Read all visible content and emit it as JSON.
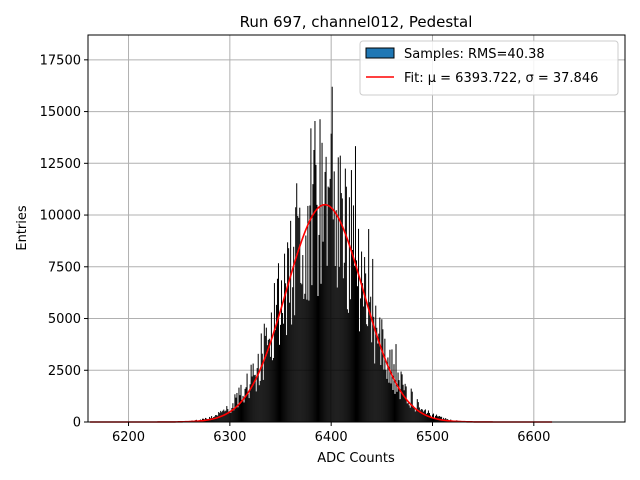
{
  "chart_data": {
    "type": "bar",
    "title": "Run 697, channel012, Pedestal",
    "xlabel": "ADC Counts",
    "ylabel": "Entries",
    "xlim": [
      6160,
      6690
    ],
    "ylim": [
      0,
      18700
    ],
    "xticks": [
      6200,
      6300,
      6400,
      6500,
      6600
    ],
    "yticks": [
      0,
      2500,
      5000,
      7500,
      10000,
      12500,
      15000,
      17500
    ],
    "grid": true,
    "legend_position": "top-right",
    "legend": [
      {
        "label": "Samples: RMS=40.38",
        "type": "patch",
        "color": "#1f77b4"
      },
      {
        "label": "Fit: μ = 6393.722, σ = 37.846",
        "type": "line",
        "color": "#ff0000"
      }
    ],
    "histogram": {
      "name": "Samples",
      "mean": 6393.7,
      "rms": 40.38,
      "peak_entries": 16200,
      "peak_adc": 6401,
      "range": [
        6200,
        6530
      ],
      "fill": "#000000"
    },
    "fit": {
      "name": "Fit",
      "mu": 6393.722,
      "sigma": 37.846,
      "amplitude": 10500,
      "x_range": [
        6162,
        6618
      ],
      "color": "#ff0000"
    }
  }
}
